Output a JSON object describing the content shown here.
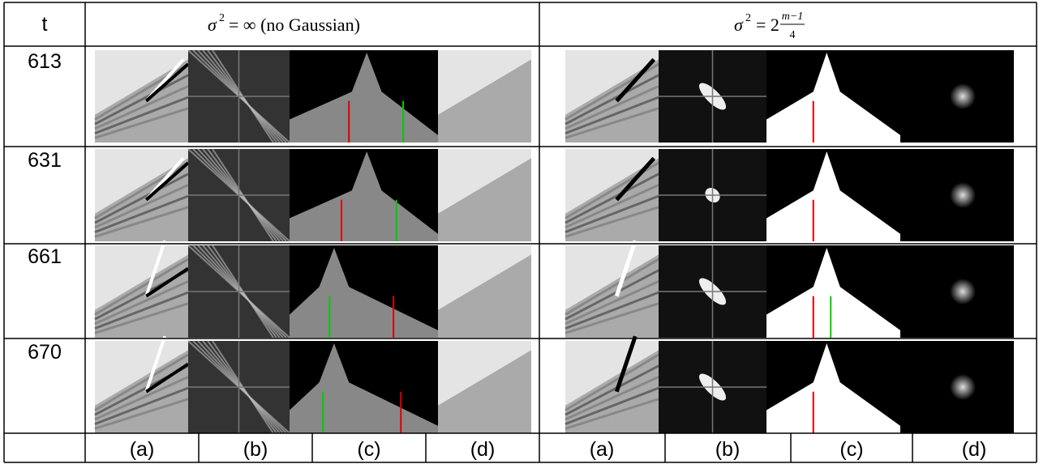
{
  "header": {
    "t": "t",
    "left": {
      "symbol": "σ",
      "exponent": "2",
      "rest": "= ∞ (no Gaussian)"
    },
    "right": {
      "symbol": "σ",
      "exponent": "2",
      "equals": "= 2",
      "numerator": "m−1",
      "denominator": "4"
    }
  },
  "rows": [
    "613",
    "631",
    "661",
    "670"
  ],
  "columns": [
    "(a)",
    "(b)",
    "(c)",
    "(d)",
    "(a)",
    "(b)",
    "(c)",
    "(d)"
  ]
}
